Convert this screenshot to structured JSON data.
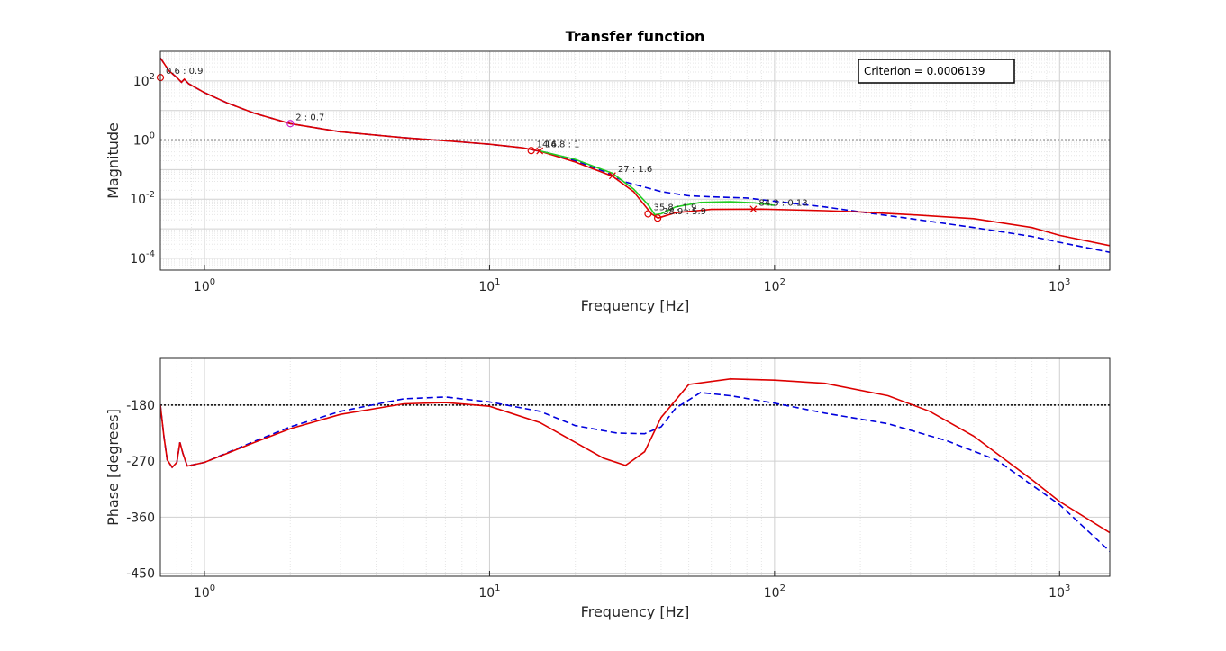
{
  "chart_data": [
    {
      "type": "line",
      "title": "Transfer function",
      "xlabel": "Frequency [Hz]",
      "ylabel": "Magnitude",
      "xscale": "log",
      "yscale": "log",
      "xlim": [
        0.7,
        1500
      ],
      "ylim": [
        4e-05,
        1000
      ],
      "grid": true,
      "reference_line": {
        "y": 1,
        "style": "black dotted"
      },
      "criterion_box": {
        "text": "Criterion = 0.0006139",
        "placement": "top-right"
      },
      "series": [
        {
          "color": "#0000dd",
          "style": "dashed",
          "points": [
            [
              0.7,
              600
            ],
            [
              0.75,
              220
            ],
            [
              0.8,
              130
            ],
            [
              0.83,
              90
            ],
            [
              0.85,
              115
            ],
            [
              0.88,
              80
            ],
            [
              1,
              40
            ],
            [
              1.2,
              18
            ],
            [
              1.5,
              8
            ],
            [
              2,
              3.6
            ],
            [
              3,
              1.9
            ],
            [
              5,
              1.2
            ],
            [
              7,
              0.95
            ],
            [
              10,
              0.72
            ],
            [
              13,
              0.55
            ],
            [
              16,
              0.37
            ],
            [
              20,
              0.2
            ],
            [
              25,
              0.09
            ],
            [
              30,
              0.038
            ],
            [
              40,
              0.018
            ],
            [
              50,
              0.013
            ],
            [
              60,
              0.012
            ],
            [
              80,
              0.011
            ],
            [
              100,
              0.0085
            ],
            [
              150,
              0.0055
            ],
            [
              200,
              0.0037
            ],
            [
              300,
              0.0022
            ],
            [
              500,
              0.0011
            ],
            [
              800,
              0.00055
            ],
            [
              1000,
              0.00035
            ],
            [
              1500,
              0.00016
            ]
          ]
        },
        {
          "color": "#dd0000",
          "style": "solid",
          "points": [
            [
              0.7,
              600
            ],
            [
              0.75,
              220
            ],
            [
              0.8,
              130
            ],
            [
              0.83,
              90
            ],
            [
              0.85,
              115
            ],
            [
              0.88,
              80
            ],
            [
              1,
              40
            ],
            [
              1.2,
              18
            ],
            [
              1.5,
              8
            ],
            [
              2,
              3.6
            ],
            [
              3,
              1.9
            ],
            [
              5,
              1.2
            ],
            [
              7,
              0.95
            ],
            [
              10,
              0.72
            ],
            [
              13,
              0.55
            ],
            [
              15,
              0.42
            ],
            [
              20,
              0.18
            ],
            [
              27,
              0.06
            ],
            [
              32,
              0.018
            ],
            [
              37,
              0.0032
            ],
            [
              39,
              0.0023
            ],
            [
              45,
              0.0035
            ],
            [
              60,
              0.0045
            ],
            [
              90,
              0.0046
            ],
            [
              150,
              0.0041
            ],
            [
              200,
              0.0037
            ],
            [
              300,
              0.003
            ],
            [
              500,
              0.0022
            ],
            [
              800,
              0.0011
            ],
            [
              1000,
              0.0006
            ],
            [
              1500,
              0.00027
            ]
          ]
        },
        {
          "color": "#22cc22",
          "style": "solid",
          "points": [
            [
              15,
              0.43
            ],
            [
              20,
              0.22
            ],
            [
              27,
              0.075
            ],
            [
              32,
              0.022
            ],
            [
              36,
              0.0065
            ],
            [
              38,
              0.003
            ],
            [
              40,
              0.0032
            ],
            [
              45,
              0.0055
            ],
            [
              55,
              0.0078
            ],
            [
              70,
              0.0082
            ],
            [
              85,
              0.0075
            ],
            [
              100,
              0.0062
            ]
          ]
        }
      ],
      "markers": [
        {
          "x": 0.7,
          "y": 130,
          "label": "0.6 : 0.9",
          "symbol": "o",
          "color": "#dd0000"
        },
        {
          "x": 2,
          "y": 3.6,
          "label": "2 : 0.7",
          "symbol": "o",
          "color": "#cc22cc"
        },
        {
          "x": 14,
          "y": 0.44,
          "label": "14.6",
          "symbol": "o",
          "color": "#dd0000"
        },
        {
          "x": 15,
          "y": 0.43,
          "label": "14.8 : 1",
          "symbol": "x",
          "color": "#dd0000"
        },
        {
          "x": 27,
          "y": 0.062,
          "label": "27 : 1.6",
          "symbol": "x",
          "color": "#dd0000"
        },
        {
          "x": 36,
          "y": 0.0032,
          "label": "35.8 : 1.9",
          "symbol": "o",
          "color": "#dd0000"
        },
        {
          "x": 38.9,
          "y": 0.0023,
          "label": "38.9 : 5.9",
          "symbol": "o",
          "color": "#dd0000"
        },
        {
          "x": 84.3,
          "y": 0.0046,
          "label": "84.3 : 0.13",
          "symbol": "x",
          "color": "#dd0000"
        }
      ],
      "xticks": [
        "10^0",
        "10^1",
        "10^2",
        "10^3"
      ],
      "yticks": [
        "10^-4",
        "10^-2",
        "10^0",
        "10^2"
      ]
    },
    {
      "type": "line",
      "xlabel": "Frequency [Hz]",
      "ylabel": "Phase [degrees]",
      "xscale": "log",
      "xlim": [
        0.7,
        1500
      ],
      "ylim": [
        -455,
        -105
      ],
      "grid": true,
      "reference_line": {
        "y": -180,
        "style": "black dotted"
      },
      "yticks": [
        "-450",
        "-360",
        "-270",
        "-180"
      ],
      "xticks": [
        "10^0",
        "10^1",
        "10^2",
        "10^3"
      ],
      "series": [
        {
          "color": "#0000dd",
          "style": "dashed",
          "points": [
            [
              0.7,
              -180
            ],
            [
              0.72,
              -230
            ],
            [
              0.74,
              -268
            ],
            [
              0.77,
              -280
            ],
            [
              0.8,
              -272
            ],
            [
              0.82,
              -240
            ],
            [
              0.84,
              -258
            ],
            [
              0.87,
              -278
            ],
            [
              1,
              -272
            ],
            [
              1.5,
              -238
            ],
            [
              2,
              -215
            ],
            [
              3,
              -190
            ],
            [
              5,
              -170
            ],
            [
              7,
              -167
            ],
            [
              10,
              -175
            ],
            [
              15,
              -190
            ],
            [
              20,
              -213
            ],
            [
              28,
              -225
            ],
            [
              35,
              -226
            ],
            [
              40,
              -215
            ],
            [
              45,
              -185
            ],
            [
              55,
              -160
            ],
            [
              70,
              -165
            ],
            [
              100,
              -177
            ],
            [
              150,
              -193
            ],
            [
              250,
              -210
            ],
            [
              400,
              -237
            ],
            [
              600,
              -268
            ],
            [
              1000,
              -340
            ],
            [
              1500,
              -415
            ]
          ]
        },
        {
          "color": "#dd0000",
          "style": "solid",
          "points": [
            [
              0.7,
              -180
            ],
            [
              0.72,
              -230
            ],
            [
              0.74,
              -268
            ],
            [
              0.77,
              -280
            ],
            [
              0.8,
              -272
            ],
            [
              0.82,
              -240
            ],
            [
              0.84,
              -258
            ],
            [
              0.87,
              -278
            ],
            [
              1,
              -272
            ],
            [
              1.5,
              -240
            ],
            [
              2,
              -218
            ],
            [
              3,
              -195
            ],
            [
              5,
              -178
            ],
            [
              7,
              -176
            ],
            [
              10,
              -182
            ],
            [
              15,
              -208
            ],
            [
              20,
              -240
            ],
            [
              25,
              -265
            ],
            [
              30,
              -277
            ],
            [
              35,
              -255
            ],
            [
              40,
              -200
            ],
            [
              50,
              -147
            ],
            [
              70,
              -138
            ],
            [
              100,
              -140
            ],
            [
              150,
              -145
            ],
            [
              250,
              -165
            ],
            [
              350,
              -190
            ],
            [
              500,
              -230
            ],
            [
              800,
              -300
            ],
            [
              1000,
              -335
            ],
            [
              1500,
              -385
            ]
          ]
        }
      ]
    }
  ]
}
